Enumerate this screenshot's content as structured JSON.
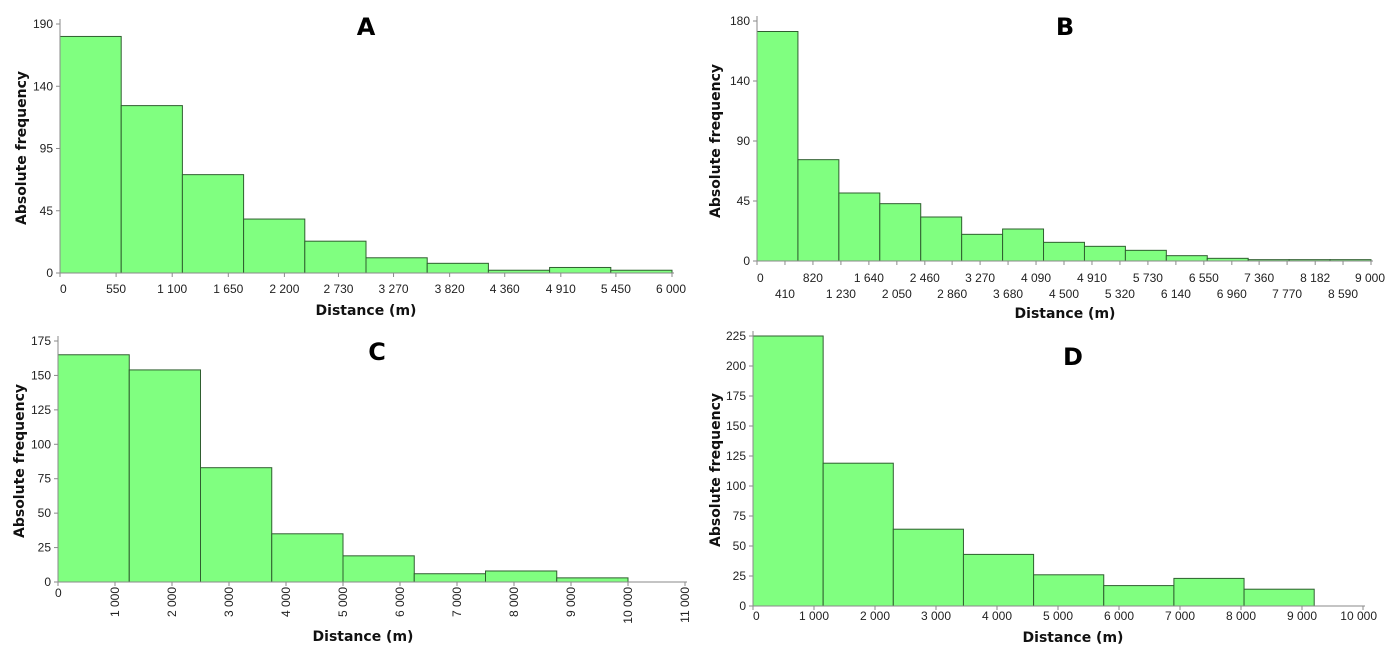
{
  "chart_data": [
    {
      "type": "bar",
      "title": "A",
      "xlabel": "Distance (m)",
      "ylabel": "Absolute frequency",
      "xlim": [
        0,
        6000
      ],
      "ylim": [
        0,
        190
      ],
      "yticks": [
        0,
        45,
        95,
        140,
        190
      ],
      "ytick_labels": [
        "0",
        "45",
        "95",
        "140",
        "190"
      ],
      "xticks": [
        0,
        550,
        1100,
        1650,
        2200,
        2730,
        3270,
        3820,
        4360,
        4910,
        5450,
        6000
      ],
      "xtick_labels": [
        "0",
        "550",
        "1 100",
        "1 650",
        "2 200",
        "2 730",
        "3 270",
        "3 820",
        "4 360",
        "4 910",
        "5 450",
        "6 000"
      ],
      "bin_width": 600,
      "values": [
        180,
        126,
        74,
        39,
        23,
        11,
        7,
        2,
        4,
        2
      ],
      "bar_color": "#80ff80",
      "grid": false
    },
    {
      "type": "bar",
      "title": "B",
      "xlabel": "Distance (m)",
      "ylabel": "Absolute frequency",
      "xlim": [
        0,
        9000
      ],
      "ylim": [
        0,
        180
      ],
      "yticks": [
        0,
        45,
        90,
        140,
        180
      ],
      "ytick_labels": [
        "0",
        "45",
        "90",
        "140",
        "180"
      ],
      "xticks": [
        0,
        410,
        820,
        1230,
        1640,
        2050,
        2460,
        2860,
        3270,
        3680,
        4090,
        4500,
        4910,
        5320,
        5730,
        6140,
        6550,
        6960,
        7360,
        7770,
        8182,
        8590,
        9000
      ],
      "xtick_labels": [
        "0",
        "410",
        "820",
        "1 230",
        "1 640",
        "2 050",
        "2 460",
        "2 860",
        "3 270",
        "3 680",
        "4 090",
        "4 500",
        "4 910",
        "5 320",
        "5 730",
        "6 140",
        "6 550",
        "6 960",
        "7 360",
        "7 770",
        "8 182",
        "8 590",
        "9 000"
      ],
      "bin_width": 600,
      "values": [
        173,
        76,
        51,
        43,
        33,
        20,
        24,
        14,
        11,
        8,
        4,
        2,
        1,
        1,
        1
      ],
      "bar_color": "#80ff80",
      "grid": false
    },
    {
      "type": "bar",
      "title": "C",
      "xlabel": "Distance (m)",
      "ylabel": "Absolute frequency",
      "xlim": [
        0,
        11000
      ],
      "ylim": [
        0,
        175
      ],
      "yticks": [
        0,
        25,
        50,
        75,
        100,
        125,
        150,
        175
      ],
      "ytick_labels": [
        "0",
        "25",
        "50",
        "75",
        "100",
        "125",
        "150",
        "175"
      ],
      "xticks": [
        0,
        1000,
        2000,
        3000,
        4000,
        5000,
        6000,
        7000,
        8000,
        9000,
        10000,
        11000
      ],
      "xtick_labels": [
        "0",
        "1 000",
        "2 000",
        "3 000",
        "4 000",
        "5 000",
        "6 000",
        "7 000",
        "8 000",
        "9 000",
        "10 000",
        "11 000"
      ],
      "bin_width": 1250,
      "values": [
        165,
        154,
        83,
        35,
        19,
        6,
        8,
        3
      ],
      "bar_color": "#80ff80",
      "grid": false
    },
    {
      "type": "bar",
      "title": "D",
      "xlabel": "Distance (m)",
      "ylabel": "Absolute frequency",
      "xlim": [
        0,
        10000
      ],
      "ylim": [
        0,
        225
      ],
      "yticks": [
        0,
        25,
        50,
        75,
        100,
        125,
        150,
        175,
        200,
        225
      ],
      "ytick_labels": [
        "0",
        "25",
        "50",
        "75",
        "100",
        "125",
        "150",
        "175",
        "200",
        "225"
      ],
      "xticks": [
        0,
        1000,
        2000,
        3000,
        4000,
        5000,
        6000,
        7000,
        8000,
        9000,
        10000
      ],
      "xtick_labels": [
        "0",
        "1 000",
        "2 000",
        "3 000",
        "4 000",
        "5 000",
        "6 000",
        "7 000",
        "8 000",
        "9 000",
        "10 000"
      ],
      "bin_width": 1150,
      "values": [
        226,
        119,
        64,
        43,
        26,
        17,
        23,
        14
      ],
      "bar_color": "#80ff80",
      "grid": false
    }
  ]
}
